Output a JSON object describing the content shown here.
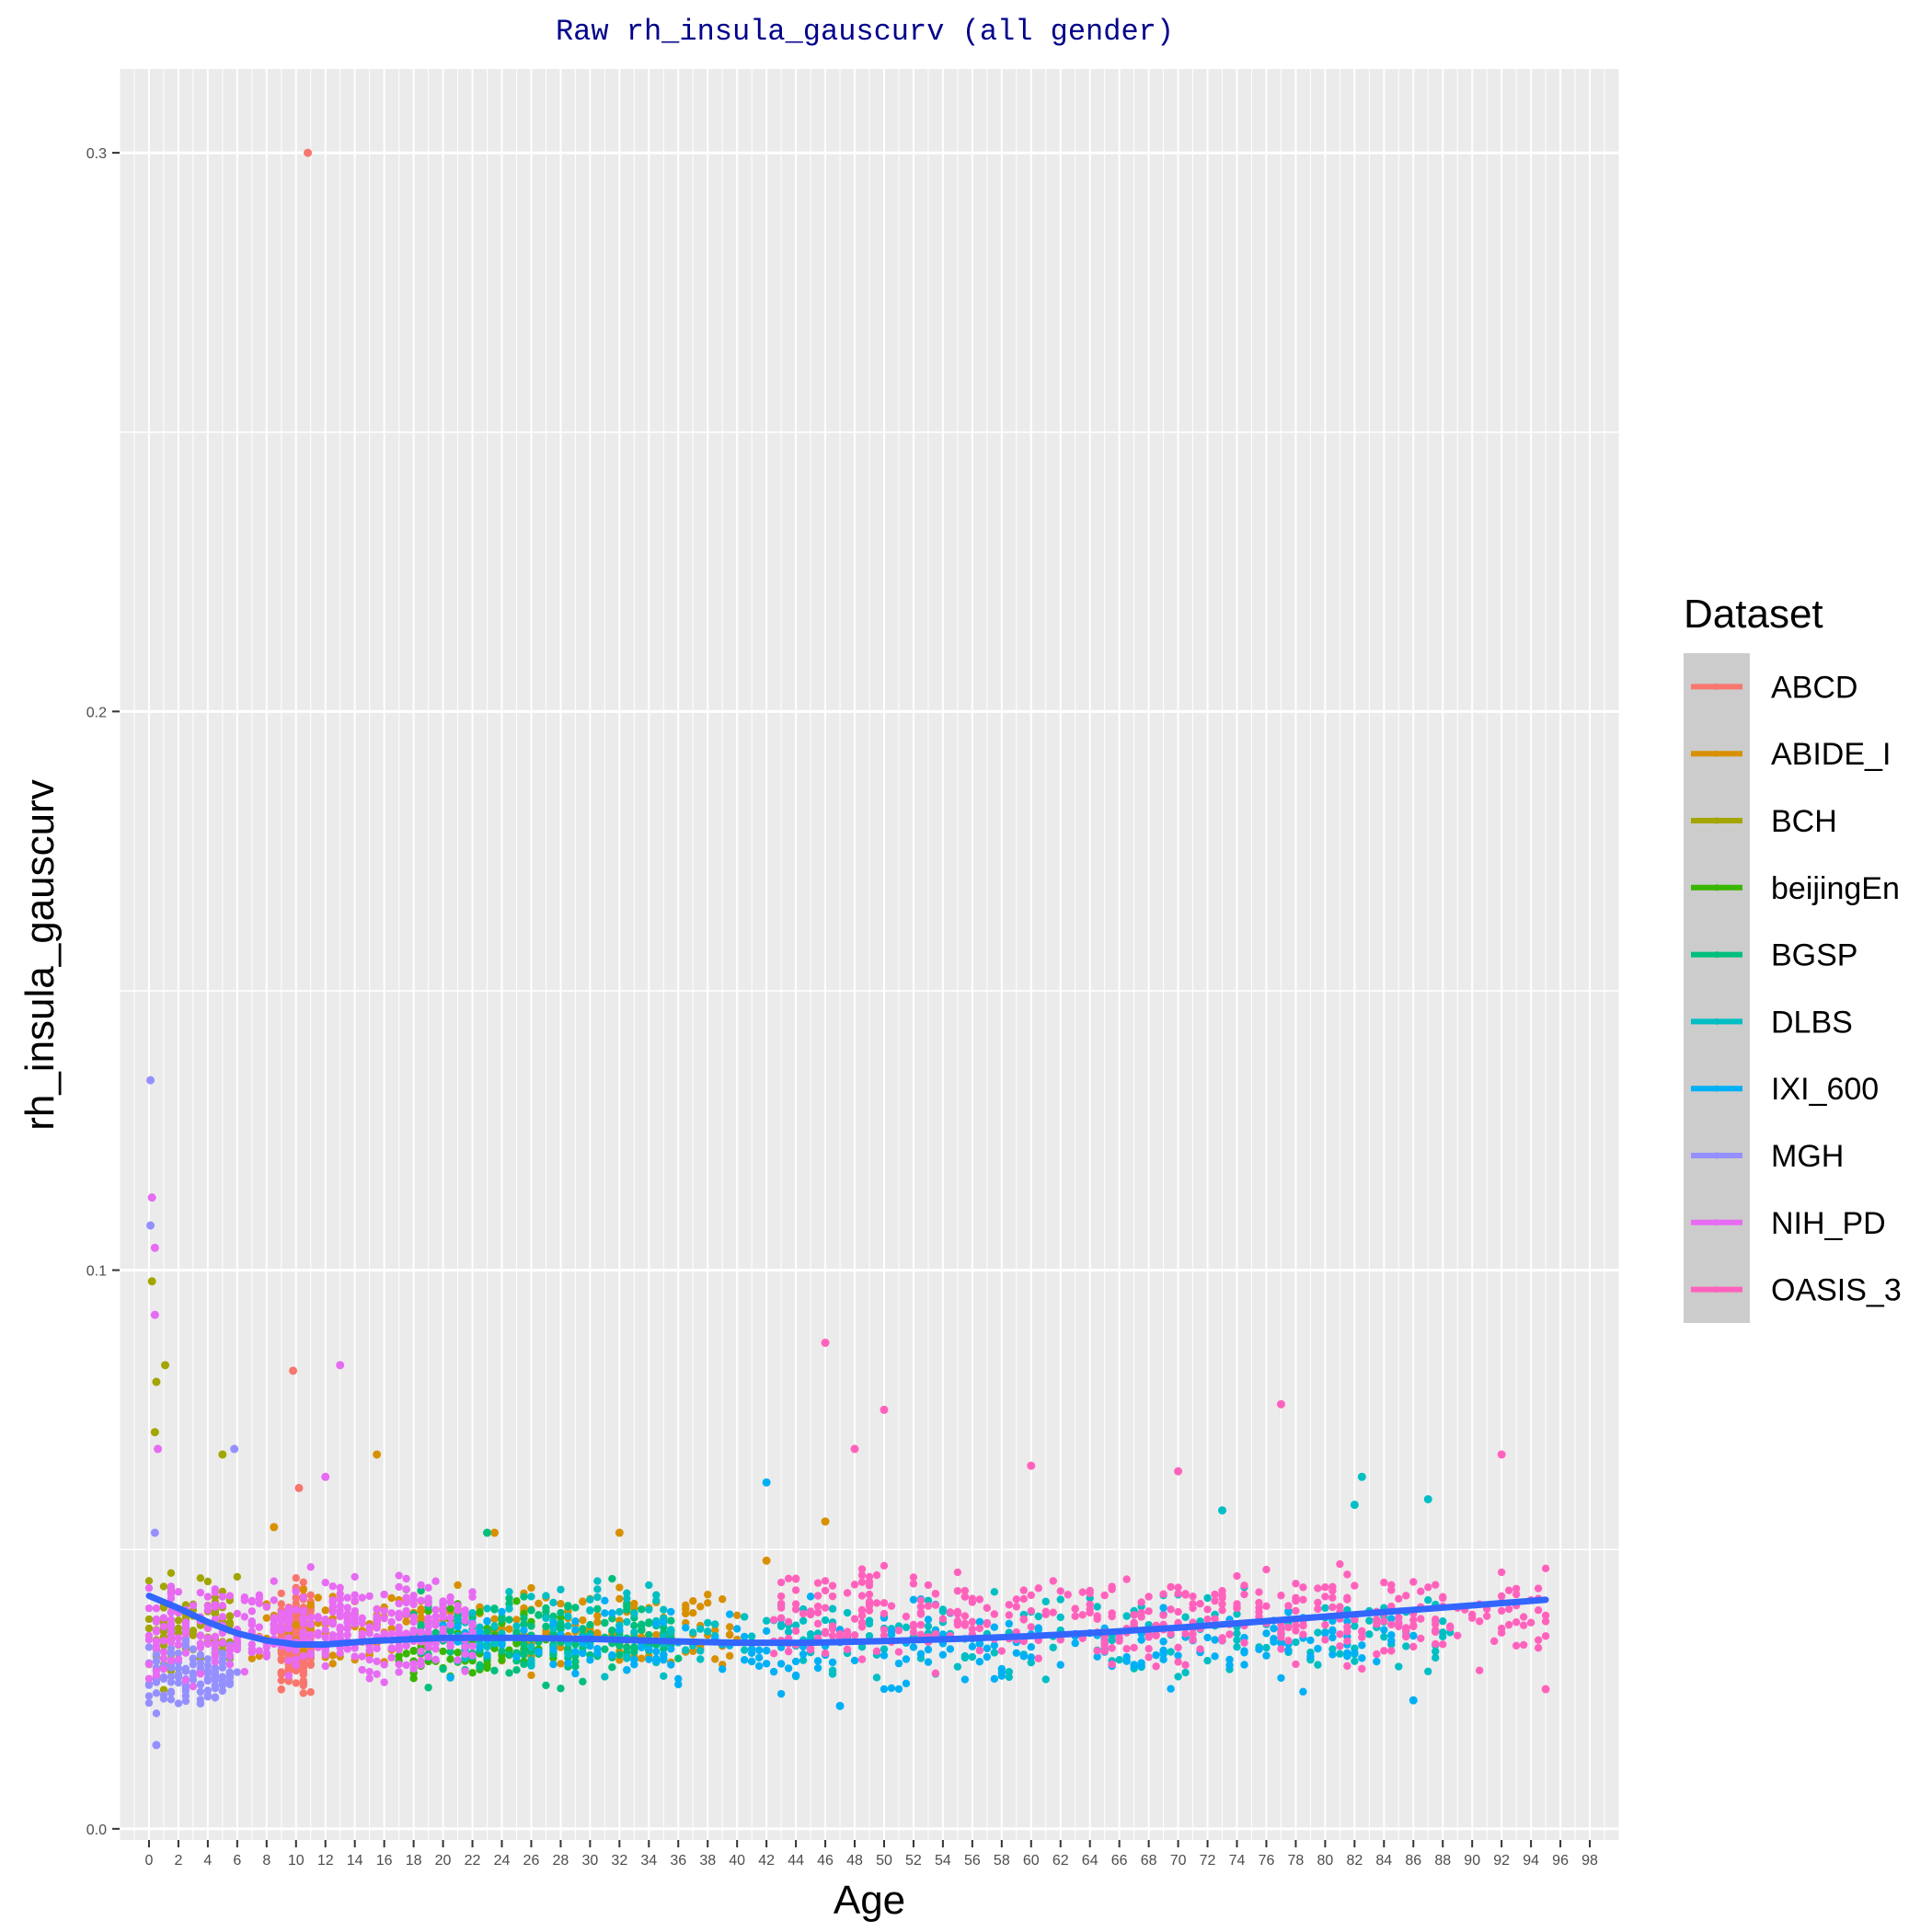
{
  "chart_data": {
    "type": "scatter",
    "title": "Raw rh_insula_gauscurv (all gender)",
    "xlabel": "Age",
    "ylabel": "rh_insula_gauscurv",
    "xlim": [
      -2,
      100
    ],
    "ylim": [
      -0.002,
      0.315
    ],
    "x_ticks": [
      0,
      2,
      4,
      6,
      8,
      10,
      12,
      14,
      16,
      18,
      20,
      22,
      24,
      26,
      28,
      30,
      32,
      34,
      36,
      38,
      40,
      42,
      44,
      46,
      48,
      50,
      52,
      54,
      56,
      58,
      60,
      62,
      64,
      66,
      68,
      70,
      72,
      74,
      76,
      78,
      80,
      82,
      84,
      86,
      88,
      90,
      92,
      94,
      96,
      98
    ],
    "y_ticks": [
      0.0,
      0.1,
      0.2,
      0.3
    ],
    "y_tick_labels": [
      "0.0",
      "0.1",
      "0.2",
      "0.3"
    ],
    "grid": true,
    "legend": {
      "title": "Dataset",
      "position": "right"
    },
    "series": [
      {
        "name": "ABCD",
        "color": "#F8766D",
        "x_range": [
          9,
          11
        ],
        "y_center": 0.034,
        "y_spread": 0.008,
        "n": 260,
        "outliers": [
          [
            10.8,
            0.3
          ],
          [
            9.8,
            0.082
          ],
          [
            10.2,
            0.061
          ]
        ]
      },
      {
        "name": "ABIDE_I",
        "color": "#D89000",
        "x_range": [
          7,
          40
        ],
        "y_center": 0.036,
        "y_spread": 0.007,
        "n": 220,
        "outliers": [
          [
            15.5,
            0.067
          ],
          [
            23.5,
            0.053
          ],
          [
            32,
            0.053
          ],
          [
            46,
            0.055
          ],
          [
            42,
            0.048
          ],
          [
            8.5,
            0.054
          ]
        ]
      },
      {
        "name": "BCH",
        "color": "#A3A500",
        "x_range": [
          0,
          6
        ],
        "y_center": 0.036,
        "y_spread": 0.008,
        "n": 110,
        "outliers": [
          [
            0.2,
            0.098
          ],
          [
            1.1,
            0.083
          ],
          [
            0.5,
            0.08
          ],
          [
            5,
            0.067
          ],
          [
            0.4,
            0.071
          ]
        ]
      },
      {
        "name": "beijingEn",
        "color": "#39B600",
        "x_range": [
          17,
          28
        ],
        "y_center": 0.034,
        "y_spread": 0.006,
        "n": 90,
        "outliers": []
      },
      {
        "name": "BGSP",
        "color": "#00BF7D",
        "x_range": [
          18,
          36
        ],
        "y_center": 0.034,
        "y_spread": 0.007,
        "n": 200,
        "outliers": [
          [
            23,
            0.053
          ]
        ]
      },
      {
        "name": "DLBS",
        "color": "#00BFC4",
        "x_range": [
          20,
          89
        ],
        "y_center": 0.035,
        "y_spread": 0.008,
        "n": 260,
        "outliers": [
          [
            82,
            0.058
          ],
          [
            87,
            0.059
          ],
          [
            73,
            0.057
          ],
          [
            82.5,
            0.063
          ]
        ]
      },
      {
        "name": "IXI_600",
        "color": "#00B0F6",
        "x_range": [
          20,
          86
        ],
        "y_center": 0.033,
        "y_spread": 0.007,
        "n": 260,
        "outliers": [
          [
            42,
            0.062
          ],
          [
            47,
            0.022
          ],
          [
            86,
            0.023
          ]
        ]
      },
      {
        "name": "MGH",
        "color": "#9590FF",
        "x_range": [
          0,
          6
        ],
        "y_center": 0.028,
        "y_spread": 0.006,
        "n": 130,
        "outliers": [
          [
            0.1,
            0.134
          ],
          [
            0.1,
            0.108
          ],
          [
            0.5,
            0.015
          ],
          [
            5.8,
            0.068
          ],
          [
            0.4,
            0.053
          ]
        ]
      },
      {
        "name": "NIH_PD",
        "color": "#E76BF3",
        "x_range": [
          0,
          22
        ],
        "y_center": 0.036,
        "y_spread": 0.008,
        "n": 420,
        "outliers": [
          [
            0.2,
            0.113
          ],
          [
            0.4,
            0.104
          ],
          [
            0.4,
            0.092
          ],
          [
            13,
            0.083
          ],
          [
            12,
            0.063
          ],
          [
            0.6,
            0.068
          ]
        ]
      },
      {
        "name": "OASIS_3",
        "color": "#FF62BC",
        "x_range": [
          42,
          95
        ],
        "y_center": 0.038,
        "y_spread": 0.008,
        "n": 420,
        "outliers": [
          [
            46,
            0.087
          ],
          [
            50,
            0.075
          ],
          [
            77,
            0.076
          ],
          [
            48,
            0.068
          ],
          [
            92,
            0.067
          ],
          [
            60,
            0.065
          ],
          [
            70,
            0.064
          ],
          [
            95,
            0.025
          ]
        ]
      }
    ],
    "smooth": {
      "color": "#3366FF",
      "x": [
        0,
        2,
        4,
        6,
        8,
        10,
        12,
        15,
        20,
        25,
        30,
        35,
        40,
        45,
        50,
        55,
        60,
        65,
        70,
        75,
        80,
        85,
        90,
        95
      ],
      "y": [
        0.0417,
        0.0395,
        0.037,
        0.035,
        0.0337,
        0.033,
        0.033,
        0.0336,
        0.0342,
        0.0342,
        0.034,
        0.0336,
        0.0333,
        0.0333,
        0.0336,
        0.034,
        0.0345,
        0.0352,
        0.036,
        0.037,
        0.038,
        0.039,
        0.04,
        0.041
      ]
    }
  }
}
